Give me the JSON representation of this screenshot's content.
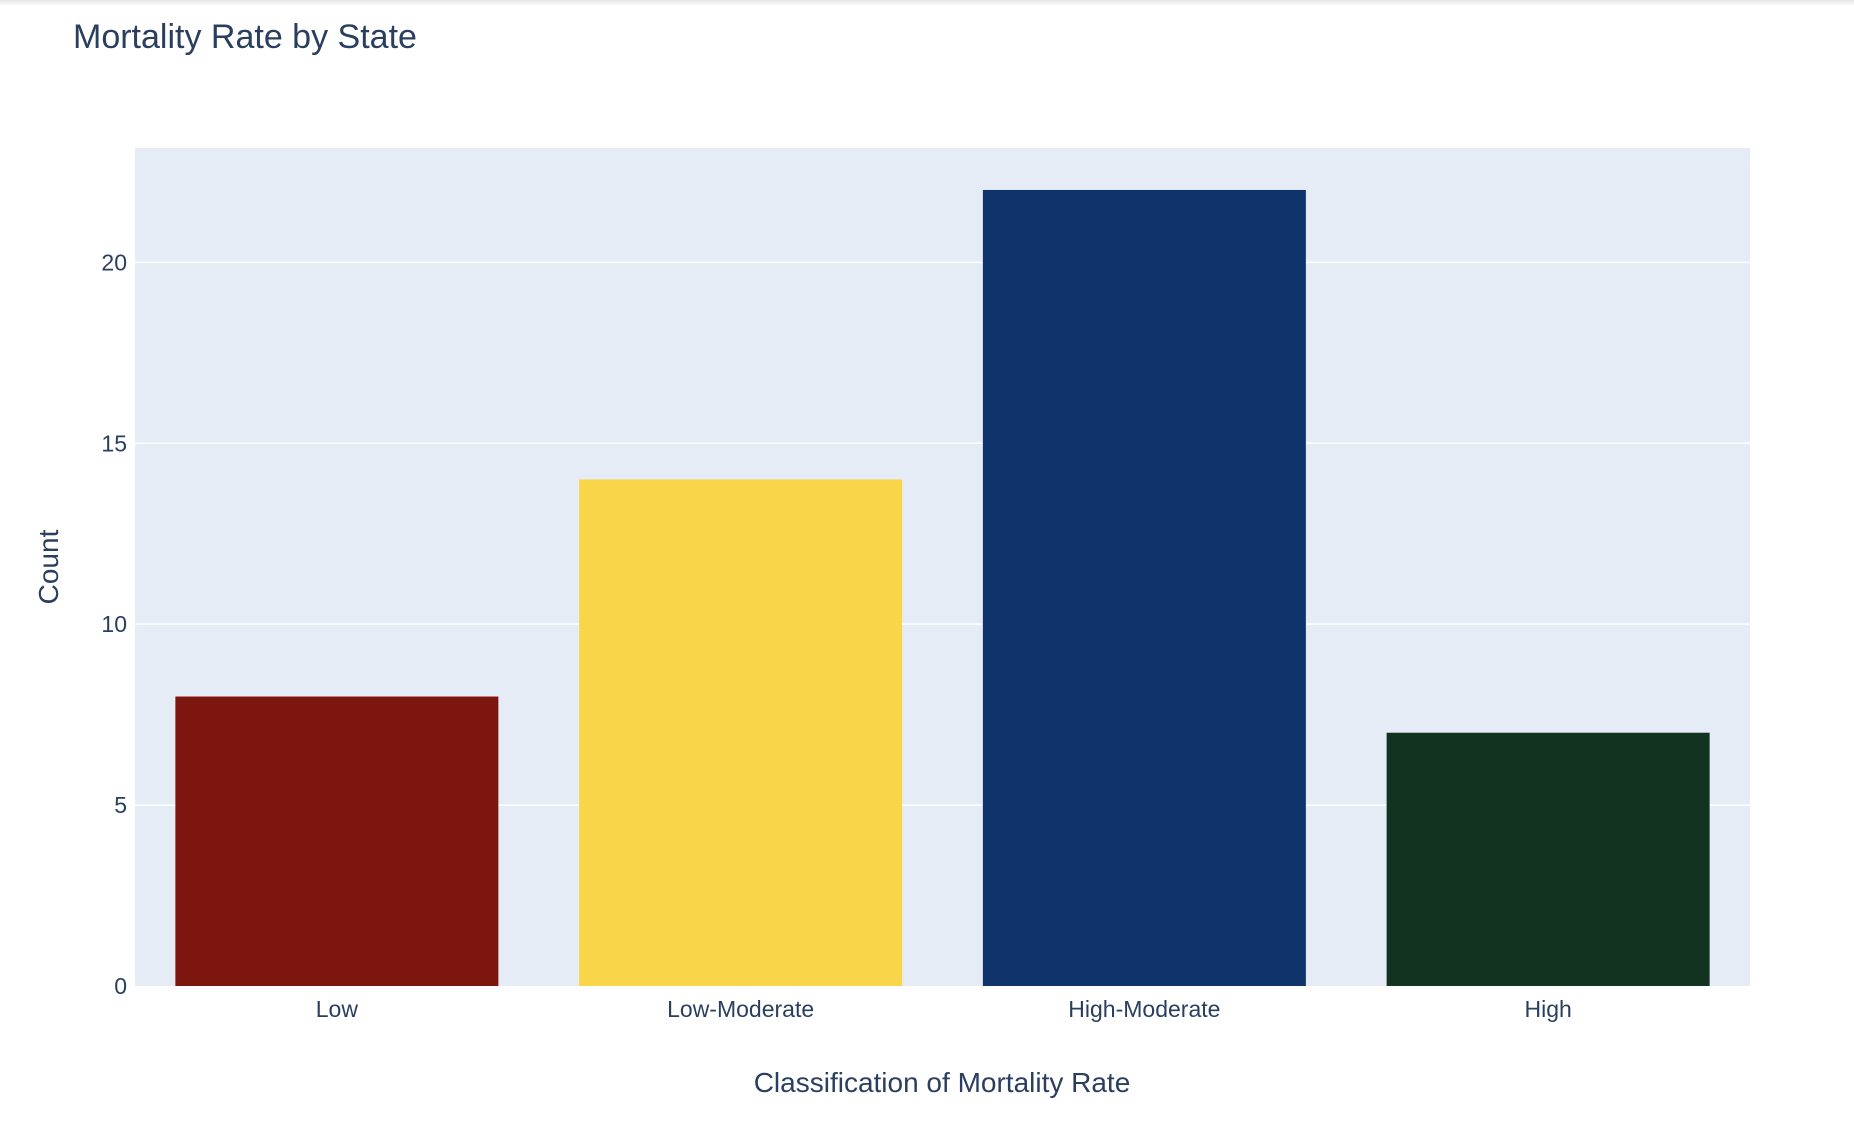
{
  "chart_data": {
    "type": "bar",
    "title": "Mortality Rate by State",
    "xlabel": "Classification of Mortality Rate",
    "ylabel": "Count",
    "categories": [
      "Low",
      "Low-Moderate",
      "High-Moderate",
      "High"
    ],
    "values": [
      8,
      14,
      22,
      7
    ],
    "colors": [
      "#7d160e",
      "#f9d54a",
      "#0f336b",
      "#123320"
    ],
    "ylim": [
      0,
      23.16
    ],
    "yticks": [
      0,
      5,
      10,
      15,
      20
    ],
    "grid": true,
    "legend": "none",
    "plot_background": "#e5ecf6",
    "text_color": "#2a3f5f"
  }
}
